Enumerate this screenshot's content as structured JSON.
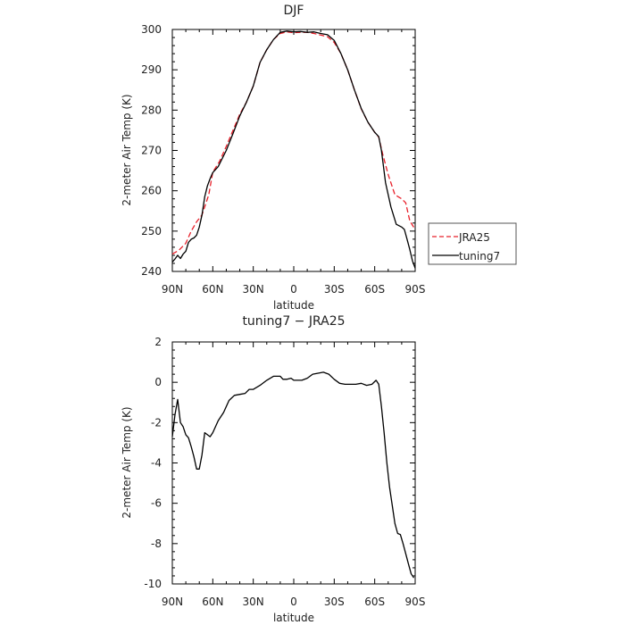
{
  "chart_data": [
    {
      "type": "line",
      "title": "DJF",
      "xlabel": "latitude",
      "ylabel": "2-meter Air Temp (K)",
      "xlim": [
        -90,
        90
      ],
      "ylim": [
        240,
        300
      ],
      "x_ticks": [
        {
          "value": -90,
          "label": "90N"
        },
        {
          "value": -60,
          "label": "60N"
        },
        {
          "value": -30,
          "label": "30N"
        },
        {
          "value": 0,
          "label": "0"
        },
        {
          "value": 30,
          "label": "30S"
        },
        {
          "value": 60,
          "label": "60S"
        },
        {
          "value": 90,
          "label": "90S"
        }
      ],
      "y_ticks": [
        240,
        250,
        260,
        270,
        280,
        290,
        300
      ],
      "grid": false,
      "legend_position": "right",
      "series": [
        {
          "name": "JRA25",
          "color": "#e8202a",
          "dash": "dashed",
          "points": [
            [
              -90,
              244.3
            ],
            [
              -85,
              245.3
            ],
            [
              -80,
              247
            ],
            [
              -76,
              250
            ],
            [
              -72,
              252.3
            ],
            [
              -68,
              254
            ],
            [
              -63,
              259
            ],
            [
              -60,
              264.6
            ],
            [
              -55,
              267.3
            ],
            [
              -50,
              271
            ],
            [
              -45,
              275
            ],
            [
              -40,
              279
            ],
            [
              -35,
              282
            ],
            [
              -30,
              286
            ],
            [
              -25,
              291.8
            ],
            [
              -20,
              295
            ],
            [
              -15,
              297.5
            ],
            [
              -10,
              299
            ],
            [
              -5,
              299.4
            ],
            [
              0,
              299.2
            ],
            [
              5,
              299.3
            ],
            [
              10,
              299.3
            ],
            [
              15,
              299
            ],
            [
              20,
              298.6
            ],
            [
              25,
              298.2
            ],
            [
              30,
              296.8
            ],
            [
              35,
              294
            ],
            [
              40,
              290
            ],
            [
              45,
              285
            ],
            [
              50,
              280.3
            ],
            [
              55,
              277
            ],
            [
              60,
              274.5
            ],
            [
              63,
              273.3
            ],
            [
              66,
              269
            ],
            [
              70,
              264
            ],
            [
              75,
              259
            ],
            [
              80,
              258
            ],
            [
              83,
              257
            ],
            [
              86,
              252.5
            ],
            [
              90,
              250.4
            ]
          ]
        },
        {
          "name": "tuning7",
          "color": "#000000",
          "dash": "solid",
          "points": [
            [
              -90,
              242.3
            ],
            [
              -88,
              243.1
            ],
            [
              -86,
              244
            ],
            [
              -84,
              243.2
            ],
            [
              -82,
              244.3
            ],
            [
              -80,
              245
            ],
            [
              -78,
              247.2
            ],
            [
              -76,
              248
            ],
            [
              -74,
              248.3
            ],
            [
              -72,
              249
            ],
            [
              -70,
              251
            ],
            [
              -68,
              254
            ],
            [
              -66,
              258.5
            ],
            [
              -64,
              261.2
            ],
            [
              -62,
              263
            ],
            [
              -60,
              264.5
            ],
            [
              -56,
              266
            ],
            [
              -50,
              270
            ],
            [
              -45,
              274.2
            ],
            [
              -40,
              278.6
            ],
            [
              -35,
              282
            ],
            [
              -30,
              286
            ],
            [
              -25,
              291.8
            ],
            [
              -20,
              295
            ],
            [
              -15,
              297.5
            ],
            [
              -10,
              299.3
            ],
            [
              -5,
              299.6
            ],
            [
              0,
              299.4
            ],
            [
              5,
              299.5
            ],
            [
              10,
              299.3
            ],
            [
              15,
              299.4
            ],
            [
              20,
              299
            ],
            [
              25,
              298.7
            ],
            [
              30,
              297.3
            ],
            [
              35,
              294
            ],
            [
              40,
              290
            ],
            [
              45,
              285
            ],
            [
              50,
              280.4
            ],
            [
              55,
              277
            ],
            [
              60,
              274.5
            ],
            [
              63,
              273.4
            ],
            [
              65,
              270
            ],
            [
              68,
              262
            ],
            [
              72,
              256
            ],
            [
              76,
              251.7
            ],
            [
              80,
              251
            ],
            [
              82,
              250.4
            ],
            [
              84,
              248
            ],
            [
              86,
              245.4
            ],
            [
              88,
              242.6
            ],
            [
              90,
              240.8
            ]
          ]
        }
      ]
    },
    {
      "type": "line",
      "title": "tuning7 − JRA25",
      "xlabel": "latitude",
      "ylabel": "2-meter Air Temp (K)",
      "xlim": [
        -90,
        90
      ],
      "ylim": [
        -10,
        2
      ],
      "x_ticks": [
        {
          "value": -90,
          "label": "90N"
        },
        {
          "value": -60,
          "label": "60N"
        },
        {
          "value": -30,
          "label": "30N"
        },
        {
          "value": 0,
          "label": "0"
        },
        {
          "value": 30,
          "label": "30S"
        },
        {
          "value": 60,
          "label": "60S"
        },
        {
          "value": 90,
          "label": "90S"
        }
      ],
      "y_ticks": [
        2,
        0,
        -2,
        -4,
        -6,
        -8,
        -10
      ],
      "grid": false,
      "series": [
        {
          "color": "#000000",
          "dash": "solid",
          "points": [
            [
              -90,
              -2.7
            ],
            [
              -88,
              -1.6
            ],
            [
              -86,
              -0.85
            ],
            [
              -84,
              -2.0
            ],
            [
              -82,
              -2.2
            ],
            [
              -80,
              -2.6
            ],
            [
              -78,
              -2.75
            ],
            [
              -76,
              -3.2
            ],
            [
              -74,
              -3.7
            ],
            [
              -72,
              -4.3
            ],
            [
              -70,
              -4.3
            ],
            [
              -68,
              -3.6
            ],
            [
              -66,
              -2.5
            ],
            [
              -64,
              -2.6
            ],
            [
              -62,
              -2.7
            ],
            [
              -60,
              -2.5
            ],
            [
              -56,
              -1.9
            ],
            [
              -52,
              -1.5
            ],
            [
              -48,
              -0.9
            ],
            [
              -44,
              -0.65
            ],
            [
              -40,
              -0.6
            ],
            [
              -36,
              -0.55
            ],
            [
              -33,
              -0.35
            ],
            [
              -30,
              -0.35
            ],
            [
              -25,
              -0.15
            ],
            [
              -20,
              0.1
            ],
            [
              -15,
              0.3
            ],
            [
              -10,
              0.3
            ],
            [
              -8,
              0.15
            ],
            [
              -5,
              0.15
            ],
            [
              -2,
              0.2
            ],
            [
              0,
              0.1
            ],
            [
              3,
              0.1
            ],
            [
              6,
              0.1
            ],
            [
              10,
              0.2
            ],
            [
              14,
              0.4
            ],
            [
              18,
              0.45
            ],
            [
              22,
              0.5
            ],
            [
              26,
              0.4
            ],
            [
              30,
              0.15
            ],
            [
              34,
              -0.05
            ],
            [
              38,
              -0.1
            ],
            [
              42,
              -0.1
            ],
            [
              46,
              -0.1
            ],
            [
              50,
              -0.05
            ],
            [
              54,
              -0.15
            ],
            [
              58,
              -0.1
            ],
            [
              61,
              0.1
            ],
            [
              63,
              -0.1
            ],
            [
              65,
              -1.2
            ],
            [
              67,
              -2.5
            ],
            [
              69,
              -4.0
            ],
            [
              71,
              -5.2
            ],
            [
              73,
              -6.1
            ],
            [
              75,
              -7.0
            ],
            [
              77,
              -7.5
            ],
            [
              79,
              -7.55
            ],
            [
              81,
              -8.0
            ],
            [
              83,
              -8.5
            ],
            [
              85,
              -9.0
            ],
            [
              87,
              -9.5
            ],
            [
              89,
              -9.7
            ]
          ]
        }
      ]
    }
  ]
}
